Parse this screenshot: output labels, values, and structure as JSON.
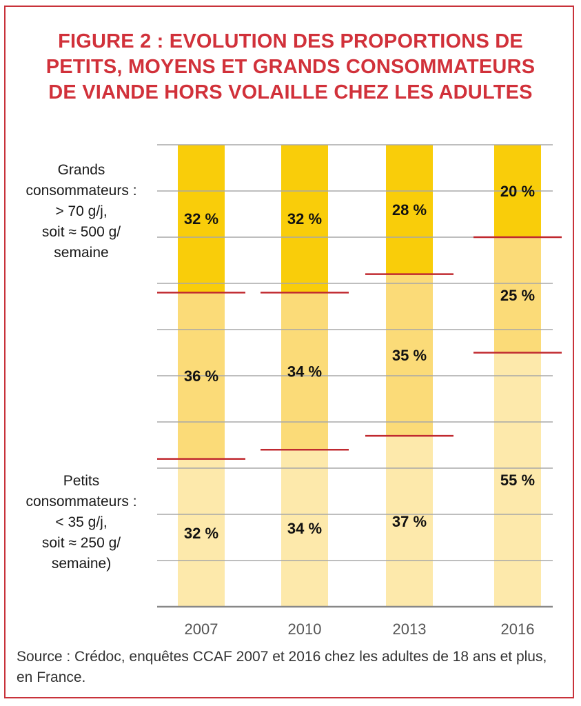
{
  "title_lines": [
    "FIGURE 2 : EVOLUTION DES PROPORTIONS DE",
    "PETITS, MOYENS ET GRANDS CONSOMMATEURS",
    "DE VIANDE HORS VOLAILLE CHEZ LES ADULTES"
  ],
  "labels": {
    "grands": [
      "Grands",
      "consommateurs :",
      "> 70 g/j,",
      "soit ≈ 500 g/",
      "semaine"
    ],
    "petits": [
      "Petits",
      "consommateurs :",
      "< 35 g/j,",
      "soit ≈ 250 g/",
      "semaine)"
    ]
  },
  "source": "Source : Crédoc, enquêtes CCAF 2007 et 2016 chez les adultes de 18 ans et plus, en France.",
  "colors": {
    "frame": "#c8323a",
    "title": "#d1313a",
    "grands": "#f9cd0a",
    "moyens": "#fbdb78",
    "petits": "#fde9ab",
    "separator": "#c0292f",
    "grid": "#a8a8a8",
    "axis": "#888888",
    "year_text": "#555555"
  },
  "chart_data": {
    "type": "bar",
    "stacked": true,
    "categories": [
      "2007",
      "2010",
      "2013",
      "2016"
    ],
    "series": [
      {
        "key": "petits",
        "values": [
          32,
          34,
          37,
          55
        ],
        "labels": [
          "32 %",
          "34 %",
          "37 %",
          "55 %"
        ]
      },
      {
        "key": "moyens",
        "values": [
          36,
          34,
          35,
          25
        ],
        "labels": [
          "36 %",
          "34 %",
          "35 %",
          "25 %"
        ]
      },
      {
        "key": "grands",
        "values": [
          32,
          32,
          28,
          20
        ],
        "labels": [
          "32 %",
          "32 %",
          "28 %",
          "20 %"
        ]
      }
    ],
    "ylim": [
      0,
      100
    ],
    "grid": true
  }
}
